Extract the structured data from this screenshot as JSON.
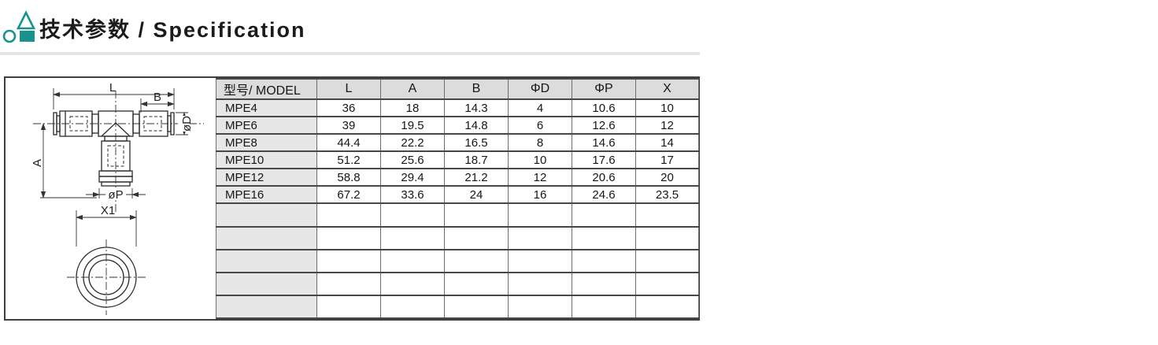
{
  "section_header": {
    "title": "技术参数 / Specification",
    "accent_color": "#17938c"
  },
  "drawing": {
    "labels": {
      "length_total": "L",
      "length_end": "B",
      "tube_dia": "øD",
      "height": "A",
      "body_dia": "øP",
      "across_width": "X1"
    }
  },
  "spec_table": {
    "columns": [
      "型号/ MODEL",
      "L",
      "A",
      "B",
      "ΦD",
      "ΦP",
      "X"
    ],
    "rows": [
      {
        "model": "MPE4",
        "values": [
          "36",
          "18",
          "14.3",
          "4",
          "10.6",
          "10"
        ]
      },
      {
        "model": "MPE6",
        "values": [
          "39",
          "19.5",
          "14.8",
          "6",
          "12.6",
          "12"
        ]
      },
      {
        "model": "MPE8",
        "values": [
          "44.4",
          "22.2",
          "16.5",
          "8",
          "14.6",
          "14"
        ]
      },
      {
        "model": "MPE10",
        "values": [
          "51.2",
          "25.6",
          "18.7",
          "10",
          "17.6",
          "17"
        ]
      },
      {
        "model": "MPE12",
        "values": [
          "58.8",
          "29.4",
          "21.2",
          "12",
          "20.6",
          "20"
        ]
      },
      {
        "model": "MPE16",
        "values": [
          "67.2",
          "33.6",
          "24",
          "16",
          "24.6",
          "23.5"
        ]
      }
    ],
    "empty_rows": 5
  }
}
